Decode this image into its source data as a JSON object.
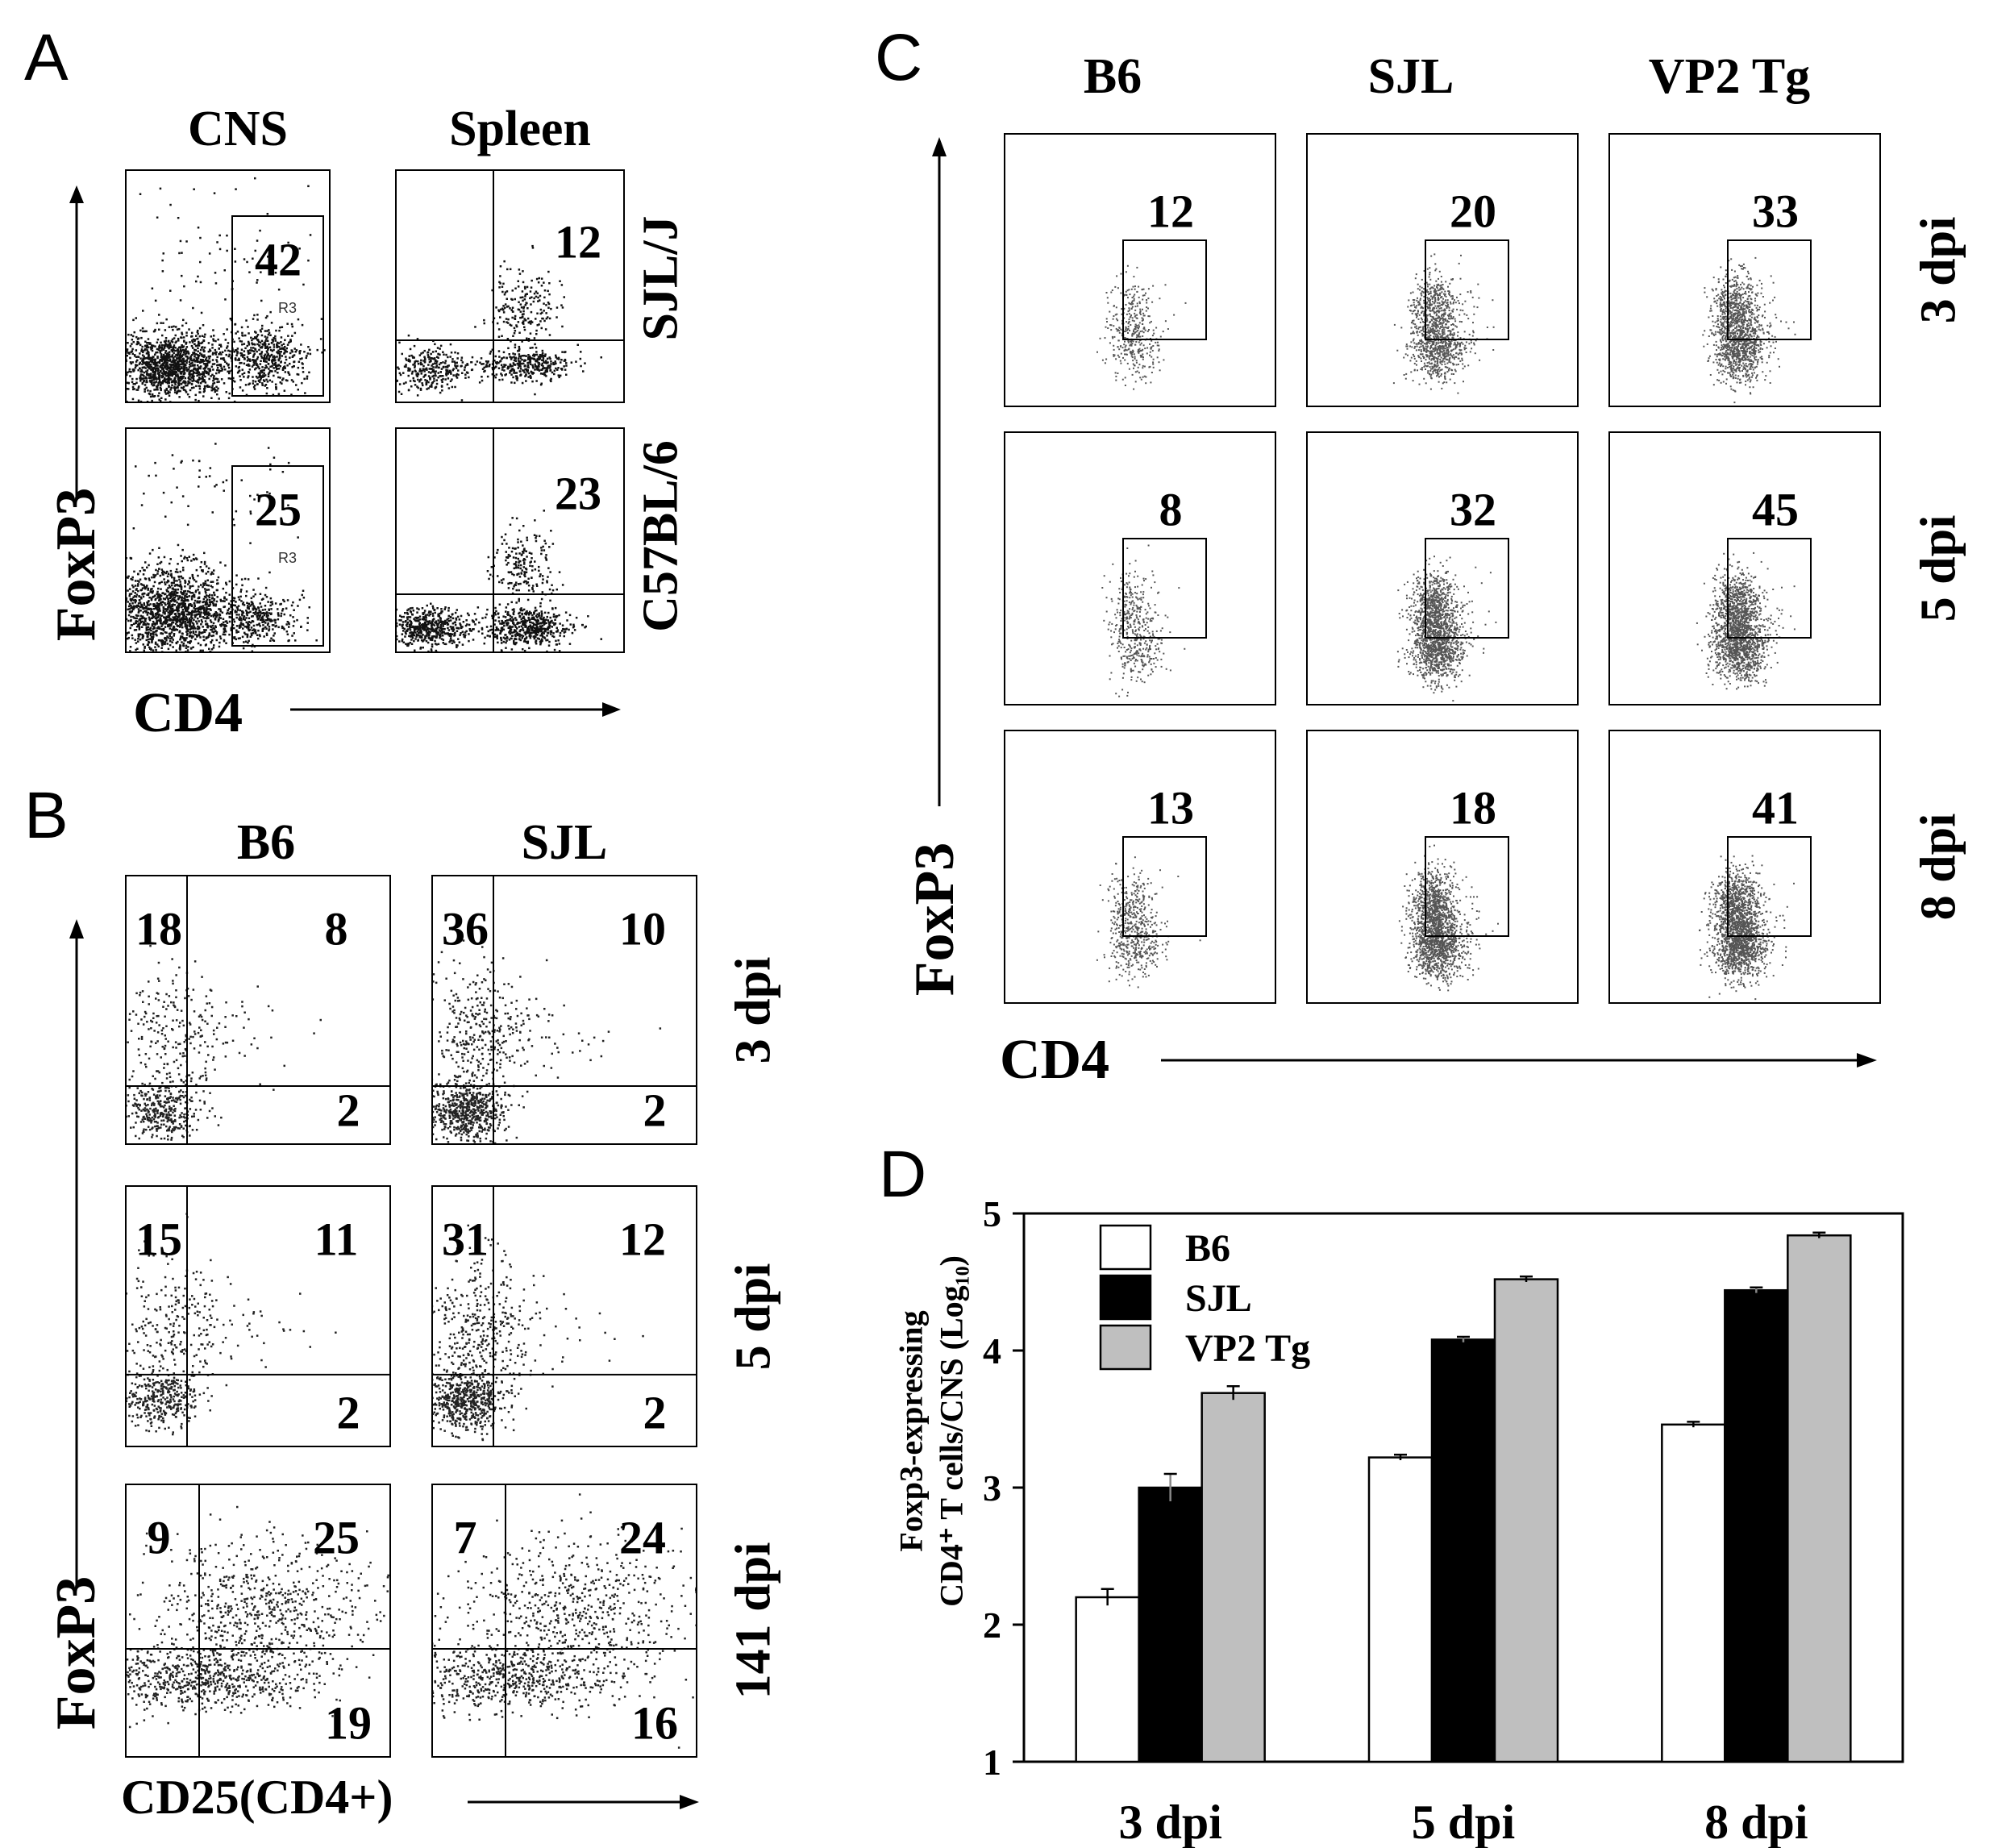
{
  "panels": {
    "A": {
      "letter": "A",
      "col_headers": [
        "CNS",
        "Spleen"
      ],
      "row_labels": [
        "SJL/J",
        "C57BL/6"
      ],
      "y_label": "FoxP3",
      "x_label": "CD4",
      "gate_label": "R3",
      "values": [
        [
          "42",
          "12"
        ],
        [
          "25",
          "23"
        ]
      ]
    },
    "B": {
      "letter": "B",
      "col_headers": [
        "B6",
        "SJL"
      ],
      "row_labels": [
        "3 dpi",
        "5 dpi",
        "141 dpi"
      ],
      "y_label": "FoxP3",
      "x_label": "CD25(CD4+)",
      "quadrants": [
        [
          {
            "ul": "18",
            "ur": "8",
            "lr": "2"
          },
          {
            "ul": "36",
            "ur": "10",
            "lr": "2"
          }
        ],
        [
          {
            "ul": "15",
            "ur": "11",
            "lr": "2"
          },
          {
            "ul": "31",
            "ur": "12",
            "lr": "2"
          }
        ],
        [
          {
            "ul": "9",
            "ur": "25",
            "lr": "19"
          },
          {
            "ul": "7",
            "ur": "24",
            "lr": "16"
          }
        ]
      ]
    },
    "C": {
      "letter": "C",
      "col_headers": [
        "B6",
        "SJL",
        "VP2 Tg"
      ],
      "row_labels": [
        "3 dpi",
        "5 dpi",
        "8 dpi"
      ],
      "y_label": "FoxP3",
      "x_label": "CD4",
      "values": [
        [
          "12",
          "20",
          "33"
        ],
        [
          "8",
          "32",
          "45"
        ],
        [
          "13",
          "18",
          "41"
        ]
      ]
    },
    "D": {
      "letter": "D",
      "ylabel_line1": "Foxp3-expressing",
      "ylabel_line2": "CD4⁺ T cells/CNS (Log₁₀)"
    }
  },
  "chart_data": {
    "type": "bar",
    "categories": [
      "3 dpi",
      "5 dpi",
      "8 dpi"
    ],
    "series": [
      {
        "name": "B6",
        "values": [
          2.2,
          3.22,
          3.46
        ],
        "errors": [
          0.06,
          0.02,
          0.02
        ],
        "color": "#ffffff"
      },
      {
        "name": "SJL",
        "values": [
          3.0,
          4.08,
          4.44
        ],
        "errors": [
          0.1,
          0.02,
          0.02
        ],
        "color": "#000000"
      },
      {
        "name": "VP2 Tg",
        "values": [
          3.69,
          4.52,
          4.84
        ],
        "errors": [
          0.05,
          0.02,
          0.02
        ],
        "color": "#bfbfbf"
      }
    ],
    "ylim": [
      1,
      5
    ],
    "yticks": [
      1,
      2,
      3,
      4,
      5
    ],
    "xlabel": "",
    "ylabel": "Foxp3-expressing CD4⁺ T cells/CNS (Log₁₀)",
    "legend": "top-left"
  }
}
